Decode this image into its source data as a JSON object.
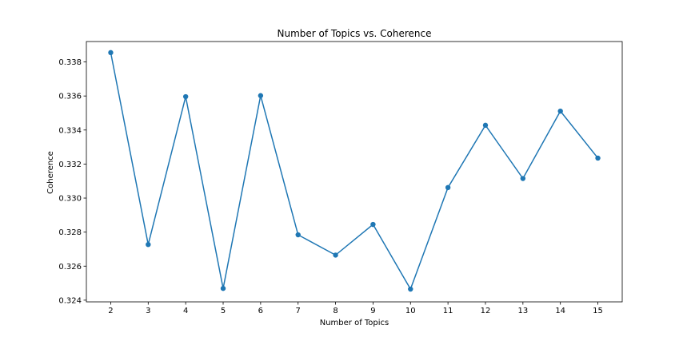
{
  "chart_data": {
    "type": "line",
    "title": "Number of Topics vs. Coherence",
    "xlabel": "Number of Topics",
    "ylabel": "Coherence",
    "x": [
      2,
      3,
      4,
      5,
      6,
      7,
      8,
      9,
      10,
      11,
      12,
      13,
      14,
      15
    ],
    "series": [
      {
        "values": [
          0.33855,
          0.32727,
          0.33596,
          0.32469,
          0.33602,
          0.32784,
          0.32665,
          0.32845,
          0.32465,
          0.33062,
          0.33428,
          0.33115,
          0.33511,
          0.33235
        ],
        "color": "#1f77b4",
        "marker": "circle"
      }
    ],
    "xticks": [
      "2",
      "3",
      "4",
      "5",
      "6",
      "7",
      "8",
      "9",
      "10",
      "11",
      "12",
      "13",
      "14",
      "15"
    ],
    "yticks": [
      "0.324",
      "0.326",
      "0.328",
      "0.330",
      "0.332",
      "0.334",
      "0.336",
      "0.338"
    ],
    "xlim": [
      1.35,
      15.65
    ],
    "ylim": [
      0.3239,
      0.3392
    ],
    "grid": false,
    "legend": "none"
  }
}
